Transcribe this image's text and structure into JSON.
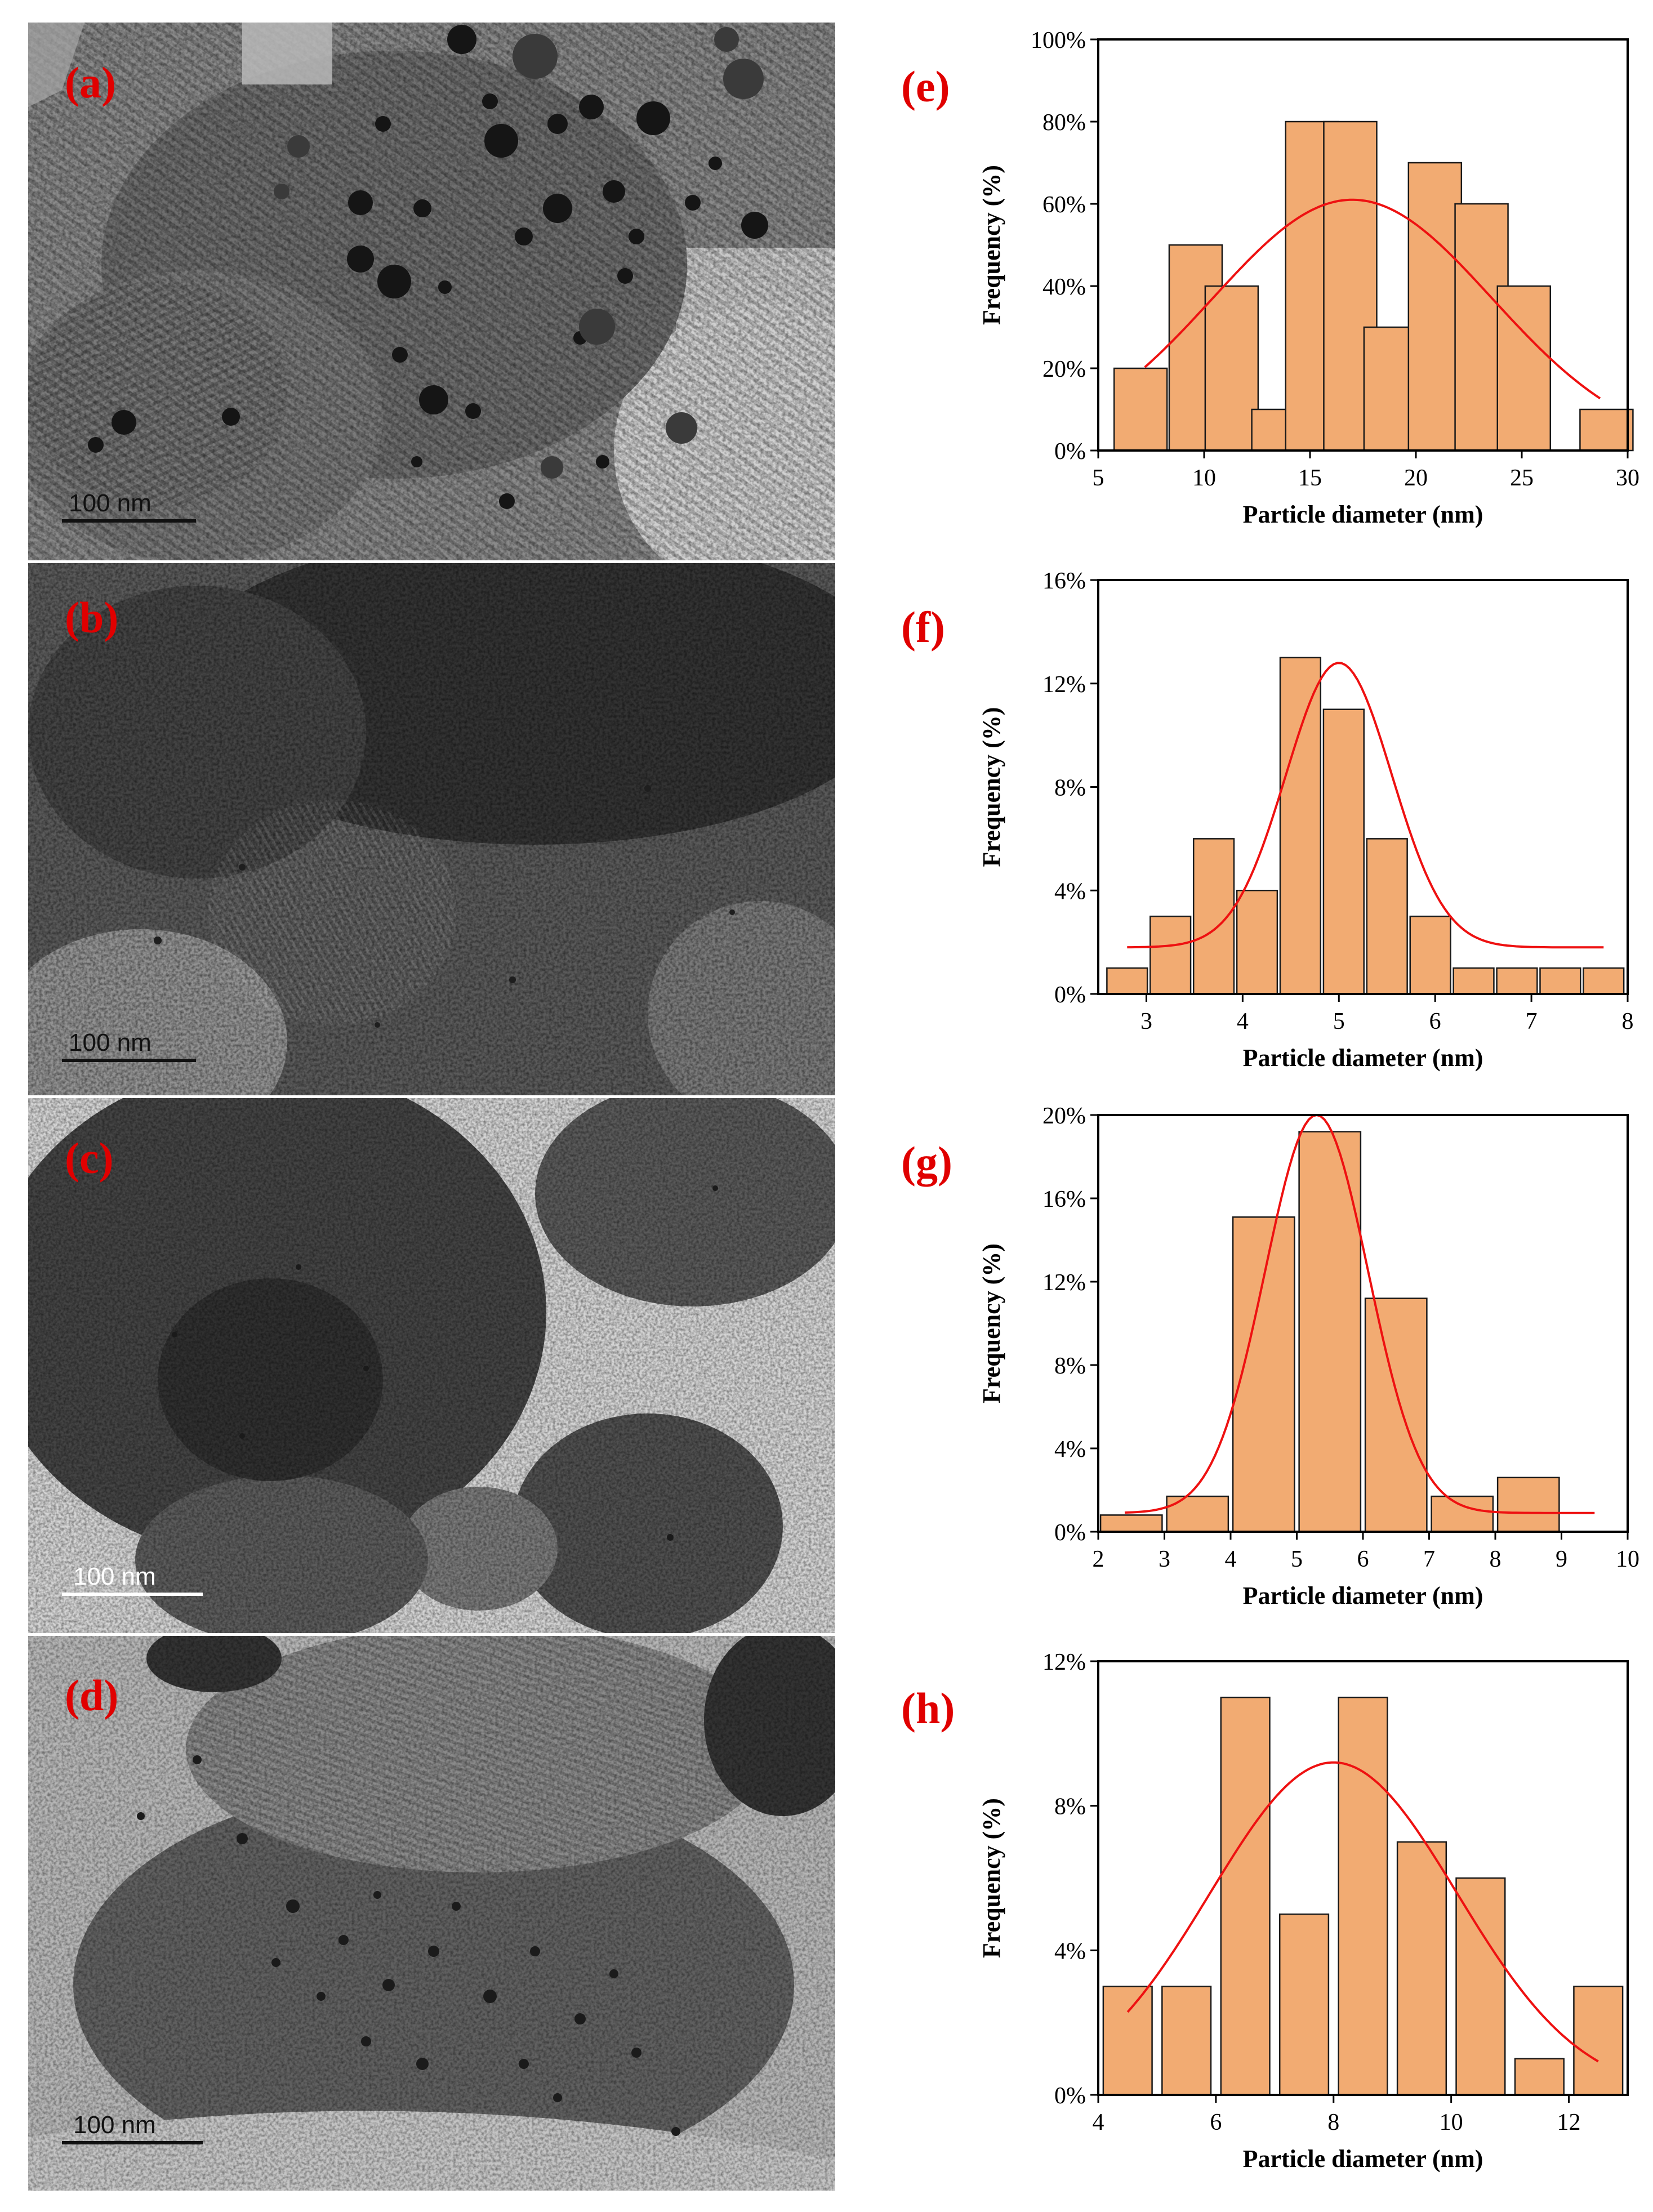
{
  "tem_panels": [
    {
      "id": "a",
      "label": "(a)",
      "scale_text": "100 nm",
      "scale_color": "#111111"
    },
    {
      "id": "b",
      "label": "(b)",
      "scale_text": "100 nm",
      "scale_color": "#111111"
    },
    {
      "id": "c",
      "label": "(c)",
      "scale_text": "100 nm",
      "scale_color": "#ffffff"
    },
    {
      "id": "d",
      "label": "(d)",
      "scale_text": "100 nm",
      "scale_color": "#111111"
    }
  ],
  "colors": {
    "bar_fill": "#f2ab72",
    "bar_stroke": "#1a1a1a",
    "fit_line": "#ee1111",
    "panel_letter": "#e00000"
  },
  "chart_data": [
    {
      "panel_label": "(e)",
      "type": "bar",
      "xlabel": "Particle diameter (nm)",
      "ylabel": "Frequency (%)",
      "xlim": [
        5,
        30
      ],
      "ylim": [
        0,
        100
      ],
      "xticks": [
        5,
        10,
        15,
        20,
        25,
        30
      ],
      "yticks": [
        0,
        20,
        40,
        60,
        80,
        100
      ],
      "ytick_labels": [
        "0%",
        "20%",
        "40%",
        "60%",
        "80%",
        "100%"
      ],
      "bar_width": 2.5,
      "x": [
        7,
        9.6,
        11.3,
        13.5,
        15.1,
        16.9,
        18.8,
        20.9,
        23.1,
        25.1,
        29
      ],
      "values": [
        20,
        50,
        40,
        10,
        80,
        80,
        30,
        70,
        60,
        40,
        10
      ],
      "fit": {
        "type": "gaussian",
        "amplitude": 61,
        "mean": 17,
        "sigma": 6.6,
        "offset": 0,
        "range": [
          7.2,
          28.7
        ]
      }
    },
    {
      "panel_label": "(f)",
      "type": "bar",
      "xlabel": "Particle diameter (nm)",
      "ylabel": "Frequency (%)",
      "xlim": [
        2.5,
        8
      ],
      "ylim": [
        0,
        16
      ],
      "xticks": [
        3,
        4,
        5,
        6,
        7,
        8
      ],
      "yticks": [
        0,
        4,
        8,
        12,
        16
      ],
      "ytick_labels": [
        "0%",
        "4%",
        "8%",
        "12%",
        "16%"
      ],
      "bar_width": 0.42,
      "x": [
        2.8,
        3.25,
        3.7,
        4.15,
        4.6,
        5.05,
        5.5,
        5.95,
        6.4,
        6.85,
        7.3,
        7.75
      ],
      "values": [
        1,
        3,
        6,
        4,
        13,
        11,
        6,
        3,
        1,
        1,
        1,
        1
      ],
      "fit": {
        "type": "gaussian",
        "amplitude": 11,
        "mean": 5.0,
        "sigma": 0.55,
        "offset": 1.8,
        "range": [
          2.8,
          7.75
        ]
      }
    },
    {
      "panel_label": "(g)",
      "type": "bar",
      "xlabel": "Particle diameter (nm)",
      "ylabel": "Frequency (%)",
      "xlim": [
        2,
        10
      ],
      "ylim": [
        0,
        20
      ],
      "xticks": [
        2,
        3,
        4,
        5,
        6,
        7,
        8,
        9,
        10
      ],
      "yticks": [
        0,
        4,
        8,
        12,
        16,
        20
      ],
      "ytick_labels": [
        "0%",
        "4%",
        "8%",
        "12%",
        "16%",
        "20%"
      ],
      "bar_width": 0.93,
      "x": [
        2.5,
        3.5,
        4.5,
        5.5,
        6.5,
        7.5,
        8.5
      ],
      "values": [
        0.8,
        1.7,
        15.1,
        19.2,
        11.2,
        1.7,
        2.6
      ],
      "fit": {
        "type": "gaussian",
        "amplitude": 19.1,
        "mean": 5.3,
        "sigma": 0.78,
        "offset": 0.9,
        "range": [
          2.4,
          9.5
        ]
      }
    },
    {
      "panel_label": "(h)",
      "type": "bar",
      "xlabel": "Particle diameter (nm)",
      "ylabel": "Frequency (%)",
      "xlim": [
        4,
        13
      ],
      "ylim": [
        0,
        12
      ],
      "xticks": [
        4,
        6,
        8,
        10,
        12
      ],
      "yticks": [
        0,
        4,
        8,
        12
      ],
      "ytick_labels": [
        "0%",
        "4%",
        "8%",
        "12%"
      ],
      "bar_width": 0.83,
      "x": [
        4.5,
        5.5,
        6.5,
        7.5,
        8.5,
        9.5,
        10.5,
        11.5,
        12.5
      ],
      "values": [
        3,
        3,
        11,
        5,
        11,
        7,
        6,
        1,
        3
      ],
      "fit": {
        "type": "gaussian",
        "amplitude": 9.2,
        "mean": 8.0,
        "sigma": 2.1,
        "offset": 0,
        "range": [
          4.5,
          12.5
        ]
      }
    }
  ]
}
